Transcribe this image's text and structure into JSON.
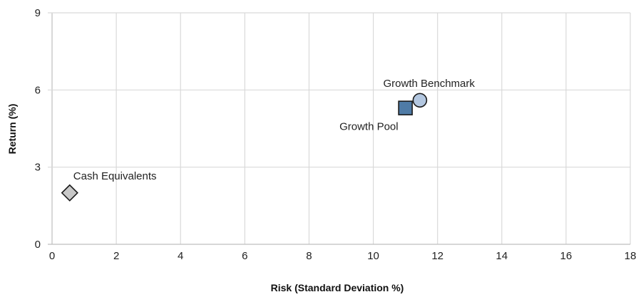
{
  "chart_data": {
    "type": "scatter",
    "title": "",
    "xlabel": "Risk (Standard Deviation %)",
    "ylabel": "Return (%)",
    "xlim": [
      0,
      18
    ],
    "ylim": [
      0,
      9
    ],
    "x_ticks": [
      0,
      2,
      4,
      6,
      8,
      10,
      12,
      14,
      16,
      18
    ],
    "y_ticks": [
      0,
      3,
      6,
      9
    ],
    "grid": true,
    "legend": "none",
    "points": [
      {
        "label": "Cash Equivalents",
        "x": 0.55,
        "y": 2.0,
        "marker": "diamond",
        "color": "#c8c8c8",
        "label_position": "above-right"
      },
      {
        "label": "Growth Pool",
        "x": 11.0,
        "y": 5.3,
        "marker": "square",
        "color": "#4f7ba6",
        "label_position": "below-left"
      },
      {
        "label": "Growth Benchmark",
        "x": 11.45,
        "y": 5.6,
        "marker": "circle",
        "color": "#b3c7e0",
        "label_position": "above-left"
      }
    ]
  }
}
